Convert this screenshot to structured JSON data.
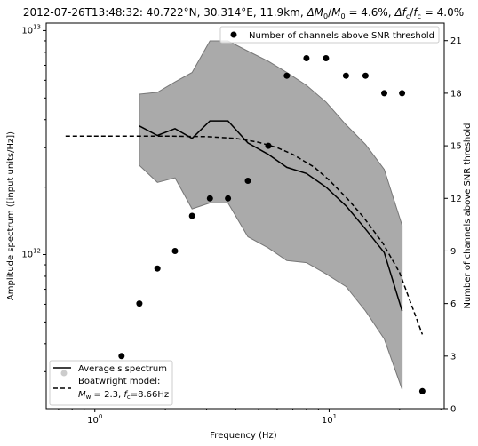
{
  "chart_data": {
    "type": "line",
    "title": "2012-07-26T13:48:32: 40.722°N, 30.314°E, 11.9km, ΔM0/M0 = 4.6%, Δfc/fc = 4.0%",
    "title_parts": {
      "main": "2012-07-26T13:48:32: 40.722°N, 30.314°E, 11.9km, ",
      "dm_sym": "ΔM",
      "dm_sub": "0",
      "slash": "/",
      "m_sym": "M",
      "m_sub": "0",
      "dm_val": " = 4.6%, ",
      "df_sym": "Δf",
      "df_sub": "c",
      "f_sym": "f",
      "f_sub": "c",
      "df_val": " = 4.0%"
    },
    "xlabel": "Frequency (Hz)",
    "ylabel": "Amplitude spectrum ([input units/Hz])",
    "y2label": "Number of channels above SNR threshold",
    "xscale": "log",
    "yscale": "log",
    "xlim": [
      0.62,
      31
    ],
    "ylim": [
      205000000000.0,
      10800000000000.0
    ],
    "y2lim": [
      0,
      22
    ],
    "x_ticks": [
      {
        "v": 1,
        "base": "10",
        "exp": "0"
      },
      {
        "v": 10,
        "base": "10",
        "exp": "1"
      }
    ],
    "y_ticks": [
      {
        "v": 1000000000000.0,
        "base": "10",
        "exp": "12"
      },
      {
        "v": 10000000000000.0,
        "base": "10",
        "exp": "13"
      }
    ],
    "y2_ticks": [
      "0",
      "3",
      "6",
      "9",
      "12",
      "15",
      "18",
      "21"
    ],
    "band": {
      "x": [
        1.55,
        1.85,
        2.2,
        2.6,
        3.1,
        3.7,
        4.5,
        5.5,
        6.6,
        8,
        9.7,
        11.8,
        14.3,
        17.2,
        20.5
      ],
      "upper": [
        5200000000000.0,
        5300000000000.0,
        5900000000000.0,
        6500000000000.0,
        9000000000000.0,
        9000000000000.0,
        8100000000000.0,
        7300000000000.0,
        6500000000000.0,
        5700000000000.0,
        4800000000000.0,
        3800000000000.0,
        3100000000000.0,
        2400000000000.0,
        1350000000000.0
      ],
      "lower": [
        2500000000000.0,
        2100000000000.0,
        2200000000000.0,
        1600000000000.0,
        1700000000000.0,
        1700000000000.0,
        1200000000000.0,
        1070000000000.0,
        940000000000.0,
        920000000000.0,
        820000000000.0,
        720000000000.0,
        560000000000.0,
        420000000000.0,
        250000000000.0
      ]
    },
    "series": [
      {
        "name": "Average s spectrum",
        "x": [
          1.55,
          1.85,
          2.2,
          2.6,
          3.1,
          3.7,
          4.5,
          5.5,
          6.6,
          8,
          9.7,
          11.8,
          14.3,
          17.2,
          20.5
        ],
        "values": [
          3750000000000.0,
          3400000000000.0,
          3650000000000.0,
          3300000000000.0,
          3950000000000.0,
          3950000000000.0,
          3150000000000.0,
          2800000000000.0,
          2450000000000.0,
          2300000000000.0,
          2000000000000.0,
          1650000000000.0,
          1300000000000.0,
          1020000000000.0,
          560000000000.0
        ]
      },
      {
        "name": "Boatwright model:",
        "x": [
          0.75,
          1.0,
          1.5,
          2.0,
          3.0,
          4.0,
          5.0,
          6.0,
          7.0,
          8.66,
          10,
          12,
          14,
          17,
          20,
          25
        ],
        "values": [
          3380000000000.0,
          3380000000000.0,
          3380000000000.0,
          3380000000000.0,
          3360000000000.0,
          3300000000000.0,
          3170000000000.0,
          3000000000000.0,
          2800000000000.0,
          2450000000000.0,
          2150000000000.0,
          1770000000000.0,
          1470000000000.0,
          1120000000000.0,
          830000000000.0,
          440000000000.0
        ]
      },
      {
        "name": "Number of channels above SNR threshold",
        "axis": "right",
        "x": [
          1.3,
          1.55,
          1.85,
          2.2,
          2.6,
          3.1,
          3.7,
          4.5,
          5.5,
          6.6,
          8,
          9.7,
          11.8,
          14.3,
          17.2,
          20.5,
          25
        ],
        "values": [
          3,
          6,
          8,
          9,
          11,
          12,
          12,
          13,
          15,
          19,
          20,
          20,
          19,
          19,
          18,
          18,
          1
        ]
      }
    ],
    "legend_upper": {
      "placement": "top-right",
      "label": "Number of channels above SNR threshold"
    },
    "legend_lower": {
      "placement": "bottom-left",
      "avg_label": "Average s spectrum",
      "model_label": "Boatwright model:",
      "model_mw_sym": "M",
      "model_mw_sub": "w",
      "model_mw_val": " = 2.3, ",
      "model_fc_sym": "f",
      "model_fc_sub": "c",
      "model_fc_val": "=8.66Hz"
    },
    "colors": {
      "band": "#aaaaaa",
      "band_edge": "#777777",
      "line": "#000000",
      "points": "#000000",
      "axes": "#000000"
    }
  }
}
